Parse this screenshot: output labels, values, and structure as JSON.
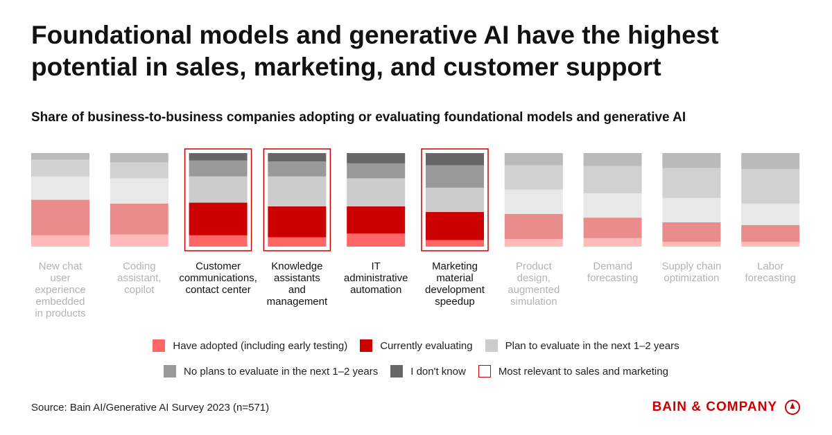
{
  "title": "Foundational models and generative AI have the highest potential in sales, marketing, and customer support",
  "colors": {
    "adopted": "#ff6666",
    "evaluating": "#cc0000",
    "plan": "#cccccc",
    "no_plans": "#999999",
    "dont_know": "#666666",
    "highlight": "#cc0000",
    "muted_label": "#b3b3b3",
    "active_label": "#111111"
  },
  "chart_data": {
    "type": "bar",
    "stacked": true,
    "normalized_percent": true,
    "title": "Share of business-to-business companies adopting or evaluating foundational models and generative AI",
    "categories": [
      "New chat\nuser\nexperience\nembedded\nin products",
      "Coding\nassistant,\ncopilot",
      "Customer\ncommunications,\ncontact center",
      "Knowledge\nassistants\nand\nmanagement",
      "IT\nadministrative\nautomation",
      "Marketing\nmaterial\ndevelopment\nspeedup",
      "Product\ndesign,\naugmented\nsimulation",
      "Demand\nforecasting",
      "Supply chain\noptimization",
      "Labor\nforecasting"
    ],
    "highlighted": [
      false,
      false,
      true,
      true,
      false,
      true,
      false,
      false,
      false,
      false
    ],
    "faded": [
      true,
      true,
      false,
      false,
      false,
      false,
      true,
      true,
      true,
      true
    ],
    "series": [
      {
        "name": "Have adopted (including early testing)",
        "key": "adopted",
        "values": [
          12,
          13,
          12,
          10,
          14,
          7,
          8,
          9,
          5,
          5
        ]
      },
      {
        "name": "Currently evaluating",
        "key": "evaluating",
        "values": [
          38,
          33,
          35,
          33,
          29,
          30,
          27,
          22,
          21,
          18
        ]
      },
      {
        "name": "Plan to evaluate in the next 1–2 years",
        "key": "plan",
        "values": [
          25,
          27,
          28,
          32,
          30,
          26,
          26,
          26,
          26,
          23
        ]
      },
      {
        "name": "No plans to evaluate in the next 1–2 years",
        "key": "no_plans",
        "values": [
          18,
          17,
          17,
          16,
          16,
          24,
          26,
          29,
          32,
          37
        ]
      },
      {
        "name": "I don't know",
        "key": "dont_know",
        "values": [
          7,
          10,
          8,
          9,
          11,
          13,
          13,
          14,
          16,
          17
        ]
      }
    ],
    "ylim": [
      0,
      100
    ]
  },
  "legend": {
    "row1": [
      {
        "label": "Have adopted (including early testing)",
        "key": "adopted"
      },
      {
        "label": "Currently evaluating",
        "key": "evaluating"
      },
      {
        "label": "Plan to evaluate in the next 1–2 years",
        "key": "plan"
      }
    ],
    "row2": [
      {
        "label": "No plans to evaluate in the next 1–2 years",
        "key": "no_plans"
      },
      {
        "label": "I don't know",
        "key": "dont_know"
      },
      {
        "label": "Most relevant to sales and marketing",
        "key": "highlight"
      }
    ]
  },
  "source": "Source: Bain AI/Generative AI Survey 2023 (n=571)",
  "brand": "BAIN & COMPANY"
}
